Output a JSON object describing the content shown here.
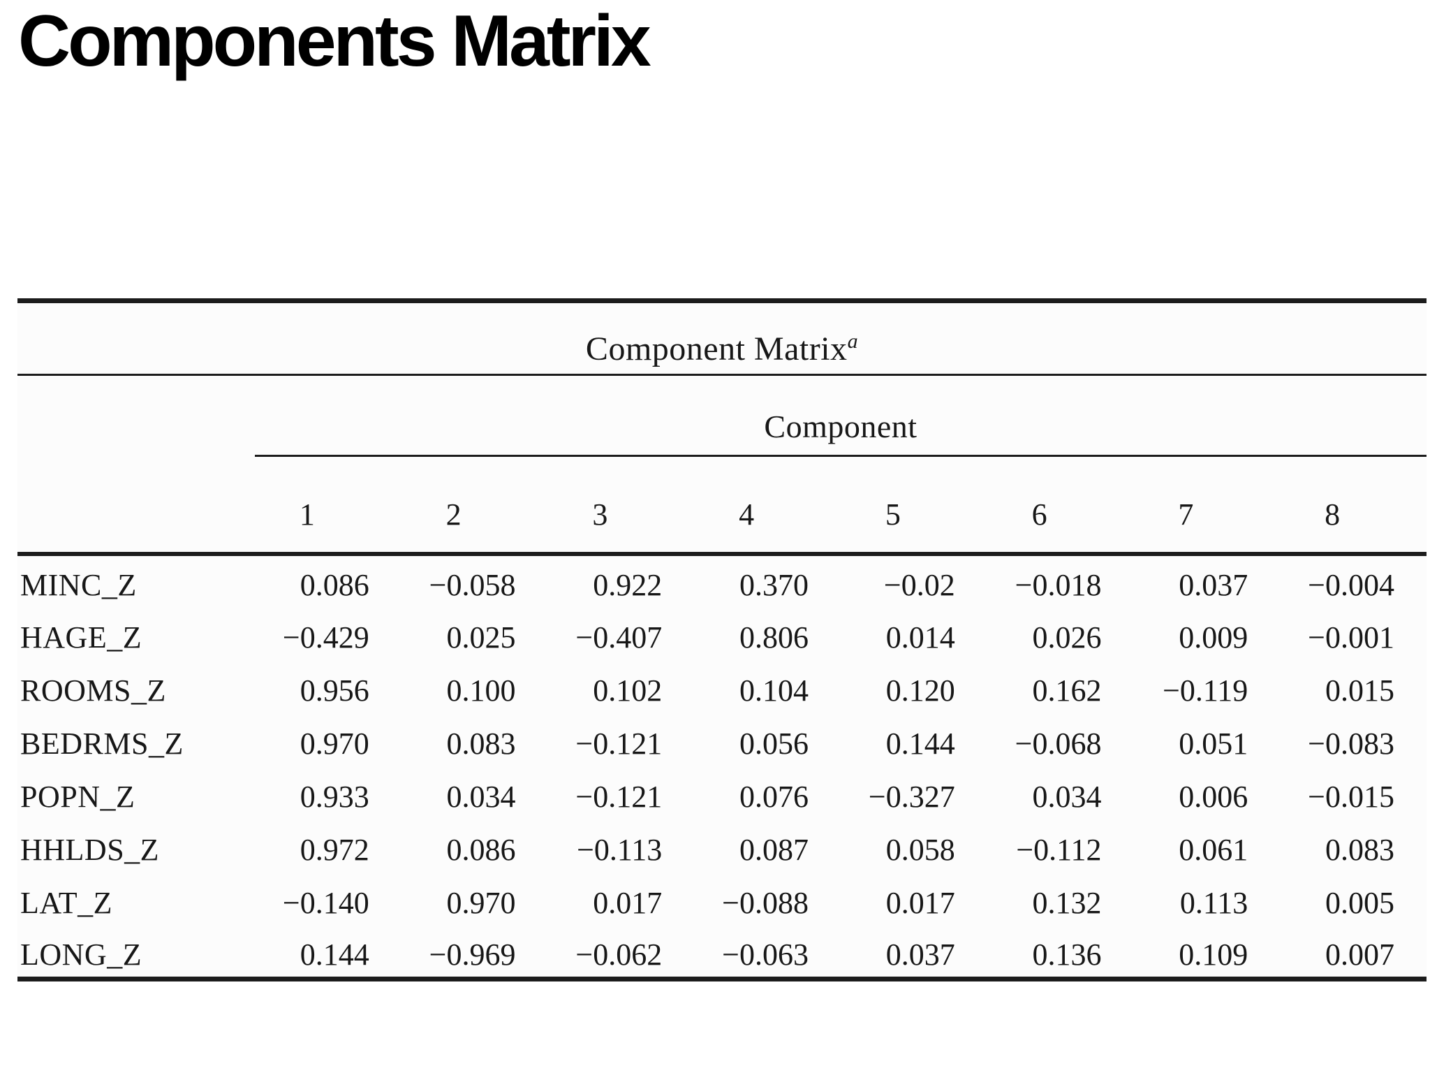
{
  "slide": {
    "title": "Components Matrix"
  },
  "table": {
    "caption": "Component Matrix",
    "caption_superscript": "a",
    "group_header": "Component",
    "columns": [
      "1",
      "2",
      "3",
      "4",
      "5",
      "6",
      "7",
      "8"
    ],
    "rows": [
      {
        "label": "MINC_Z",
        "values": [
          "0.086",
          "−0.058",
          "0.922",
          "0.370",
          "−0.02",
          "−0.018",
          "0.037",
          "−0.004"
        ]
      },
      {
        "label": "HAGE_Z",
        "values": [
          "−0.429",
          "0.025",
          "−0.407",
          "0.806",
          "0.014",
          "0.026",
          "0.009",
          "−0.001"
        ]
      },
      {
        "label": "ROOMS_Z",
        "values": [
          "0.956",
          "0.100",
          "0.102",
          "0.104",
          "0.120",
          "0.162",
          "−0.119",
          "0.015"
        ]
      },
      {
        "label": "BEDRMS_Z",
        "values": [
          "0.970",
          "0.083",
          "−0.121",
          "0.056",
          "0.144",
          "−0.068",
          "0.051",
          "−0.083"
        ]
      },
      {
        "label": "POPN_Z",
        "values": [
          "0.933",
          "0.034",
          "−0.121",
          "0.076",
          "−0.327",
          "0.034",
          "0.006",
          "−0.015"
        ]
      },
      {
        "label": "HHLDS_Z",
        "values": [
          "0.972",
          "0.086",
          "−0.113",
          "0.087",
          "0.058",
          "−0.112",
          "0.061",
          "0.083"
        ]
      },
      {
        "label": "LAT_Z",
        "values": [
          "−0.140",
          "0.970",
          "0.017",
          "−0.088",
          "0.017",
          "0.132",
          "0.113",
          "0.005"
        ]
      },
      {
        "label": "LONG_Z",
        "values": [
          "0.144",
          "−0.969",
          "−0.062",
          "−0.063",
          "0.037",
          "0.136",
          "0.109",
          "0.007"
        ]
      }
    ],
    "colors": {
      "text": "#171717",
      "rule": "#1c1c1c",
      "background": "#ffffff"
    }
  }
}
